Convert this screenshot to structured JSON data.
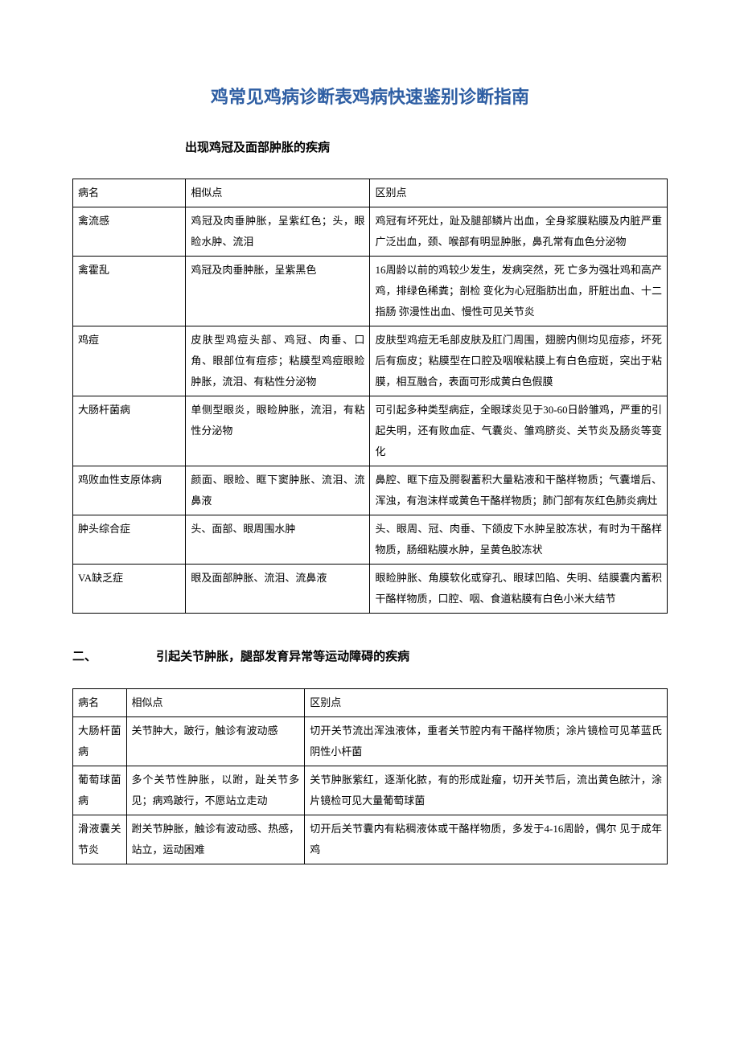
{
  "title": "鸡常见鸡病诊断表鸡病快速鉴别诊断指南",
  "section1": {
    "subtitle": "出现鸡冠及面部肿胀的疾病",
    "headers": {
      "c1": "病名",
      "c2": "相似点",
      "c3": "区别点"
    },
    "rows": [
      {
        "c1": "禽流感",
        "c2": "鸡冠及肉垂肿胀，呈紫红色；头，眼睑水肿、流泪",
        "c3": "鸡冠有坏死灶，趾及腿部鳞片出血，全身浆膜粘膜及内脏严重广泛出血，颈、喉部有明显肿胀，鼻孔常有血色分泌物"
      },
      {
        "c1": "禽霍乱",
        "c2": "鸡冠及肉垂肿胀，呈紫黑色",
        "c3": "16周龄以前的鸡较少发生，发病突然，死 亡多为强壮鸡和高产鸡，排绿色稀粪；剖检 变化为心冠脂肪出血，肝脏出血、十二指肠 弥漫性出血、慢性可见关节炎"
      },
      {
        "c1": "鸡痘",
        "c2": "皮肤型鸡痘头部、鸡冠、肉垂、口角、眼部位有痘疹；粘膜型鸡痘眼睑肿胀，流泪、有粘性分泌物",
        "c3": "皮肤型鸡痘无毛部皮肤及肛门周围，翅膀内侧均见痘疹，坏死后有痂皮；粘膜型在口腔及咽喉粘膜上有白色痘斑，突出于粘膜，相互融合，表面可形成黄白色假膜"
      },
      {
        "c1": "大肠杆菌病",
        "c2": "单侧型眼炎，眼睑肿胀，流泪，有粘性分泌物",
        "c3": "可引起多种类型病症，全眼球炎见于30-60日龄雏鸡，严重的引起失明，还有败血症、气囊炎、雏鸡脐炎、关节炎及肠炎等变化"
      },
      {
        "c1": "鸡败血性支原体病",
        "c2": "颜面、眼睑、眶下窦肿胀、流泪、流鼻液",
        "c3": "鼻腔、眶下痘及腭裂蓄积大量粘液和干酪样物质；气囊增后、浑浊，有泡沫样或黄色干酪样物质；肺门部有灰红色肺炎病灶"
      },
      {
        "c1": "肿头综合症",
        "c2": "头、面部、眼周围水肿",
        "c3": "头、眼周、冠、肉垂、下颌皮下水肿呈胶冻状，有时为干酪样物质，肠细粘膜水肿，呈黄色胶冻状"
      },
      {
        "c1": "VA缺乏症",
        "c2": "眼及面部肿胀、流泪、流鼻液",
        "c3": "眼睑肿胀、角膜软化或穿孔、眼球凹陷、失明、结膜囊内蓄积干酪样物质，口腔、咽、食道粘膜有白色小米大结节"
      }
    ]
  },
  "section2": {
    "label": "二、",
    "subtitle": "引起关节肿胀，腿部发育异常等运动障碍的疾病",
    "headers": {
      "c1": "病名",
      "c2": "相似点",
      "c3": "区别点"
    },
    "rows": [
      {
        "c1": "大肠杆菌病",
        "c2": "关节肿大，跛行，触诊有波动感",
        "c3": "切开关节流出浑浊液体，重者关节腔内有干酪样物质；涂片镜检可见革蓝氏阴性小杆菌"
      },
      {
        "c1": "葡萄球菌病",
        "c2": "多个关节性肿胀，以跗，趾关节多见；病鸡跛行，不愿站立走动",
        "c3": "关节肿胀紫红，逐渐化脓，有的形成趾瘤，切开关节后，流出黄色脓汁，涂片镜检可见大量葡萄球菌"
      },
      {
        "c1": "滑液囊关节炎",
        "c2": "跗关节肿胀，触诊有波动感、热感，站立，运动困难",
        "c3": "切开后关节囊内有粘稠液体或干酪样物质，多发于4-16周龄，偶尔 见于成年鸡"
      }
    ]
  },
  "styles": {
    "title_color": "#2e5ea3",
    "title_fontsize": 22,
    "subtitle_fontsize": 15,
    "body_fontsize": 13,
    "border_color": "#000000",
    "background_color": "#ffffff",
    "text_color": "#000000",
    "font_family_title": "SimHei",
    "font_family_body": "SimSun"
  }
}
